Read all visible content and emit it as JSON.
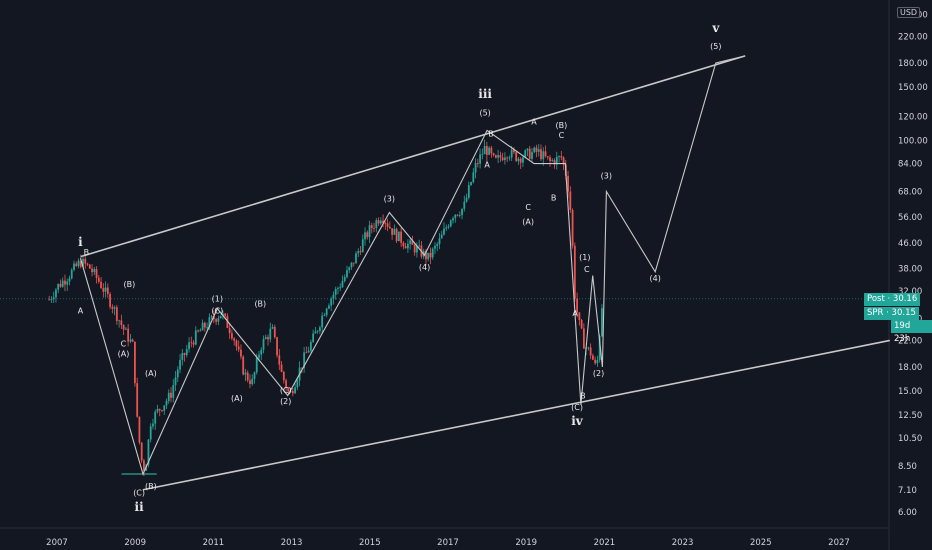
{
  "chart_data": {
    "type": "line",
    "symbol_currency": "USD",
    "scale": "log",
    "ylim": [
      5.2,
      255
    ],
    "xlim": [
      2006.6,
      2028.3
    ],
    "x_ticks": [
      "2007",
      "2009",
      "2011",
      "2013",
      "2015",
      "2017",
      "2019",
      "2021",
      "2023",
      "2025",
      "2027"
    ],
    "y_ticks": [
      "6.00",
      "7.10",
      "8.50",
      "10.50",
      "12.50",
      "15.00",
      "18.00",
      "22.00",
      "26.00",
      "32.00",
      "38.00",
      "46.00",
      "56.00",
      "68.00",
      "84.00",
      "100.00",
      "120.00",
      "150.00",
      "180.00",
      "220.00",
      "260.00"
    ],
    "price_series": {
      "name": "",
      "points": [
        [
          2006.8,
          30
        ],
        [
          2007.0,
          33
        ],
        [
          2007.3,
          36
        ],
        [
          2007.6,
          40
        ],
        [
          2007.85,
          38
        ],
        [
          2008.1,
          34
        ],
        [
          2008.4,
          29
        ],
        [
          2008.7,
          24
        ],
        [
          2008.95,
          21
        ],
        [
          2009.05,
          12
        ],
        [
          2009.15,
          9
        ],
        [
          2009.25,
          8.2
        ],
        [
          2009.4,
          12
        ],
        [
          2009.6,
          13
        ],
        [
          2009.9,
          14.5
        ],
        [
          2010.1,
          18
        ],
        [
          2010.4,
          21.5
        ],
        [
          2010.7,
          24
        ],
        [
          2011.0,
          26
        ],
        [
          2011.2,
          27
        ],
        [
          2011.5,
          23
        ],
        [
          2011.8,
          17
        ],
        [
          2012.0,
          16
        ],
        [
          2012.2,
          21
        ],
        [
          2012.5,
          24
        ],
        [
          2012.75,
          17
        ],
        [
          2012.95,
          14.5
        ],
        [
          2013.3,
          19
        ],
        [
          2013.6,
          23
        ],
        [
          2013.9,
          29
        ],
        [
          2014.2,
          33
        ],
        [
          2014.5,
          38
        ],
        [
          2014.8,
          46
        ],
        [
          2015.0,
          51
        ],
        [
          2015.3,
          57
        ],
        [
          2015.6,
          50
        ],
        [
          2015.9,
          46
        ],
        [
          2016.2,
          44
        ],
        [
          2016.5,
          41
        ],
        [
          2016.8,
          47
        ],
        [
          2017.1,
          57
        ],
        [
          2017.4,
          60
        ],
        [
          2017.7,
          82
        ],
        [
          2017.95,
          95
        ],
        [
          2018.2,
          85
        ],
        [
          2018.5,
          92
        ],
        [
          2018.8,
          88
        ],
        [
          2019.0,
          90
        ],
        [
          2019.3,
          92
        ],
        [
          2019.6,
          85
        ],
        [
          2019.9,
          88
        ],
        [
          2020.05,
          75
        ],
        [
          2020.15,
          56
        ],
        [
          2020.25,
          30
        ],
        [
          2020.35,
          25
        ],
        [
          2020.5,
          21
        ],
        [
          2020.65,
          20
        ],
        [
          2020.8,
          17.5
        ],
        [
          2020.95,
          30.16
        ]
      ]
    },
    "wave_path": {
      "name": "",
      "points": [
        [
          2007.6,
          41
        ],
        [
          2009.2,
          8
        ],
        [
          2011.1,
          28
        ],
        [
          2012.9,
          14.5
        ],
        [
          2015.5,
          58
        ],
        [
          2016.4,
          42
        ],
        [
          2018.0,
          108
        ],
        [
          2019.2,
          84
        ],
        [
          2020.0,
          84
        ],
        [
          2020.4,
          13.5
        ],
        [
          2020.7,
          36
        ],
        [
          2020.95,
          18
        ],
        [
          2021.05,
          68
        ],
        [
          2022.3,
          37
        ],
        [
          2023.85,
          180
        ],
        [
          2024.6,
          190
        ]
      ]
    },
    "channel_lines": [
      {
        "from": [
          2007.6,
          41.5
        ],
        "to": [
          2024.6,
          190
        ]
      },
      {
        "from": [
          2009.2,
          7.1
        ],
        "to": [
          2028.3,
          22
        ]
      }
    ],
    "support_line": {
      "from": [
        2008.65,
        8.0
      ],
      "to": [
        2009.55,
        8.0
      ]
    },
    "current_price_line": 30.16,
    "annotations": [
      {
        "text": "i",
        "x": 2007.6,
        "y": 45,
        "style": "big"
      },
      {
        "text": "B",
        "x": 2007.75,
        "y": 42
      },
      {
        "text": "A",
        "x": 2007.6,
        "y": 27
      },
      {
        "text": "(B)",
        "x": 2008.85,
        "y": 33
      },
      {
        "text": "C",
        "x": 2008.7,
        "y": 21
      },
      {
        "text": "(A)",
        "x": 2008.7,
        "y": 19.5
      },
      {
        "text": "(A)",
        "x": 2009.4,
        "y": 16.8
      },
      {
        "text": "(C)",
        "x": 2009.1,
        "y": 6.8
      },
      {
        "text": "(B)",
        "x": 2009.4,
        "y": 7.15
      },
      {
        "text": "ii",
        "x": 2009.1,
        "y": 6.05,
        "style": "big"
      },
      {
        "text": "(1)",
        "x": 2011.1,
        "y": 29.5
      },
      {
        "text": "(C)",
        "x": 2011.1,
        "y": 27.0
      },
      {
        "text": "(B)",
        "x": 2012.2,
        "y": 28.5
      },
      {
        "text": "(A)",
        "x": 2011.6,
        "y": 13.9
      },
      {
        "text": "(C)",
        "x": 2012.85,
        "y": 14.8
      },
      {
        "text": "(2)",
        "x": 2012.85,
        "y": 13.6
      },
      {
        "text": "(3)",
        "x": 2015.5,
        "y": 63
      },
      {
        "text": "(4)",
        "x": 2016.4,
        "y": 37.5
      },
      {
        "text": "iii",
        "x": 2017.95,
        "y": 138,
        "style": "big"
      },
      {
        "text": "(5)",
        "x": 2017.95,
        "y": 121
      },
      {
        "text": "B",
        "x": 2018.1,
        "y": 103
      },
      {
        "text": "A",
        "x": 2018.0,
        "y": 81.5
      },
      {
        "text": "A",
        "x": 2019.2,
        "y": 113
      },
      {
        "text": "(B)",
        "x": 2019.9,
        "y": 110
      },
      {
        "text": "C",
        "x": 2019.9,
        "y": 102
      },
      {
        "text": "B",
        "x": 2019.7,
        "y": 63.5
      },
      {
        "text": "C",
        "x": 2019.05,
        "y": 59
      },
      {
        "text": "(A)",
        "x": 2019.05,
        "y": 53
      },
      {
        "text": "(1)",
        "x": 2020.5,
        "y": 40.5
      },
      {
        "text": "C",
        "x": 2020.55,
        "y": 37
      },
      {
        "text": "A",
        "x": 2020.25,
        "y": 26.5
      },
      {
        "text": "(2)",
        "x": 2020.85,
        "y": 16.8
      },
      {
        "text": "B",
        "x": 2020.45,
        "y": 14.2
      },
      {
        "text": "(C)",
        "x": 2020.3,
        "y": 13.0
      },
      {
        "text": "iv",
        "x": 2020.3,
        "y": 11.6,
        "style": "big"
      },
      {
        "text": "(3)",
        "x": 2021.05,
        "y": 75
      },
      {
        "text": "(4)",
        "x": 2022.3,
        "y": 34.5
      },
      {
        "text": "v",
        "x": 2023.85,
        "y": 228,
        "style": "big"
      },
      {
        "text": "(5)",
        "x": 2023.85,
        "y": 200
      }
    ]
  },
  "price_tags": {
    "post_label": "Post",
    "post_value": "30.16",
    "spr_label": "SPR",
    "spr_value": "30.15",
    "countdown": "19d 23h"
  },
  "colors": {
    "background": "#131722",
    "up": "#26a69a",
    "down": "#ef5350",
    "lines": "#c8c8c8",
    "text": "#d1d4dc",
    "tag": "#22a699"
  }
}
